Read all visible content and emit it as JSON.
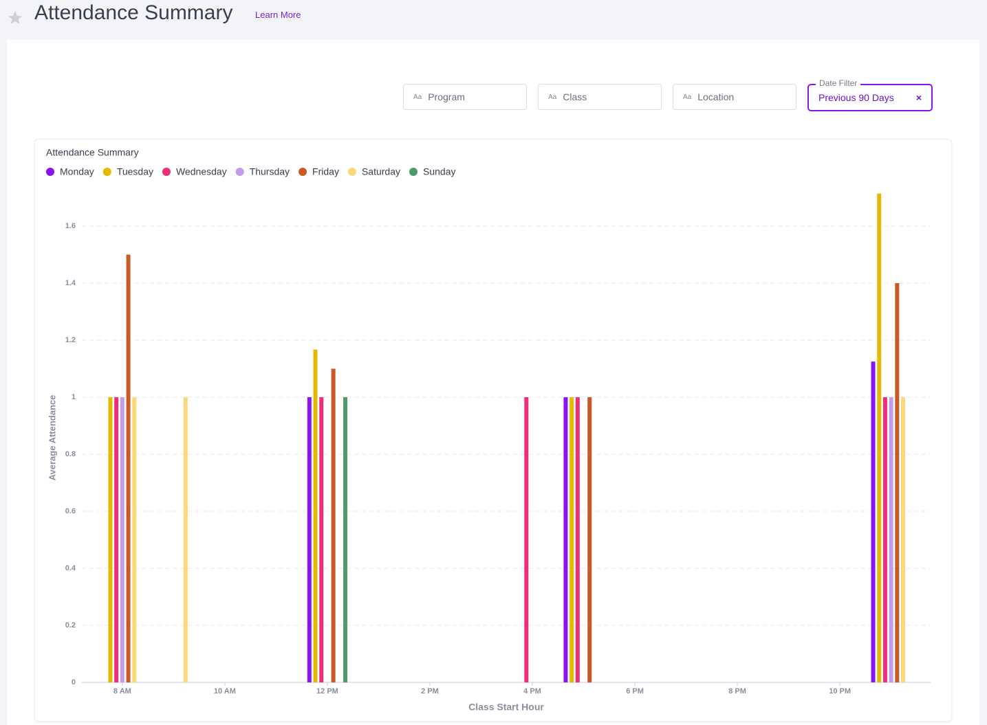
{
  "header": {
    "title": "Attendance Summary",
    "link": "Learn More"
  },
  "filters": [
    {
      "icon": "Aa",
      "placeholder": "Program"
    },
    {
      "icon": "Aa",
      "placeholder": "Class"
    },
    {
      "icon": "Aa",
      "placeholder": "Location"
    }
  ],
  "date_filter": {
    "label": "Date Filter",
    "value": "Previous 90 Days",
    "clear": "×"
  },
  "chart_data": {
    "type": "bar",
    "title": "Attendance Summary",
    "x_label": "Class Start Hour",
    "y_label": "Average Attendance",
    "x": [
      8,
      9,
      12,
      16,
      17,
      23
    ],
    "xlim": [
      7.21,
      23.77
    ],
    "xticks": [
      {
        "value": 8,
        "label": "8 AM"
      },
      {
        "value": 10,
        "label": "10 AM"
      },
      {
        "value": 12,
        "label": "12 PM"
      },
      {
        "value": 14,
        "label": "2 PM"
      },
      {
        "value": 16,
        "label": "4 PM"
      },
      {
        "value": 18,
        "label": "6 PM"
      },
      {
        "value": 20,
        "label": "8 PM"
      },
      {
        "value": 22,
        "label": "10 PM"
      }
    ],
    "ylim": [
      0,
      1.75
    ],
    "yticks": [
      0,
      0.2,
      0.4,
      0.6,
      0.8,
      1,
      1.2,
      1.4,
      1.6
    ],
    "grid": true,
    "series": [
      {
        "name": "Monday",
        "color": "#8a14f0",
        "values": [
          null,
          null,
          1,
          null,
          1,
          1.125
        ]
      },
      {
        "name": "Tuesday",
        "color": "#e6b800",
        "values": [
          1,
          null,
          1.167,
          null,
          1,
          1.714
        ]
      },
      {
        "name": "Wednesday",
        "color": "#ec2f7b",
        "values": [
          1,
          null,
          1,
          1,
          1,
          1
        ]
      },
      {
        "name": "Thursday",
        "color": "#c39be8",
        "values": [
          1,
          null,
          null,
          null,
          null,
          1
        ]
      },
      {
        "name": "Friday",
        "color": "#c85a28",
        "values": [
          1.5,
          null,
          1.1,
          null,
          1,
          1.4
        ]
      },
      {
        "name": "Saturday",
        "color": "#fbd97a",
        "values": [
          1,
          1,
          null,
          null,
          null,
          1
        ]
      },
      {
        "name": "Sunday",
        "color": "#4f9a6b",
        "values": [
          null,
          null,
          1,
          null,
          null,
          null
        ]
      }
    ]
  }
}
